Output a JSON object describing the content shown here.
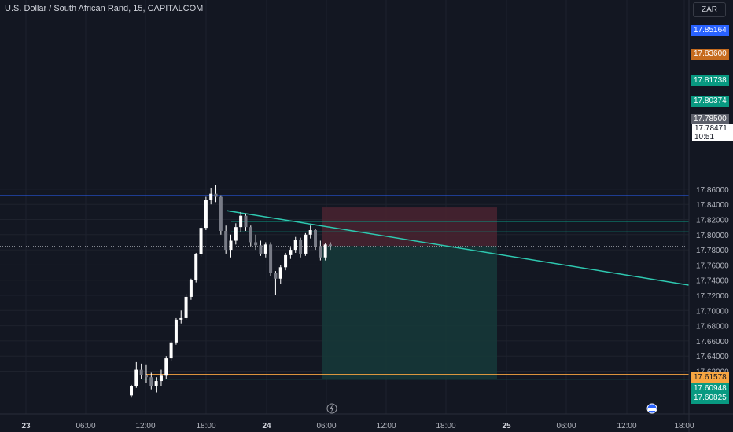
{
  "header": {
    "title": "U.S. Dollar / South African Rand, 15, CAPITALCOM",
    "currency": "ZAR"
  },
  "colors": {
    "background": "#131722",
    "axis_text": "#b2b5be",
    "candle": "#ffffff",
    "trendline": "#2ec8b0",
    "blue_line": "#2962ff",
    "teal_line": "#089981",
    "orange_line": "#f7a541",
    "stop_zone": "#4a2330",
    "target_zone": "#163a3a"
  },
  "chart_data": {
    "type": "candlestick",
    "symbol": "USDZAR",
    "timeframe": "15",
    "y_range": [
      17.585,
      17.88
    ],
    "y_ticks": [
      "17.86000",
      "17.84000",
      "17.82000",
      "17.80000",
      "17.78000",
      "17.76000",
      "17.74000",
      "17.72000",
      "17.70000",
      "17.68000",
      "17.66000",
      "17.64000",
      "17.62000"
    ],
    "x_labels": [
      "23",
      "06:00",
      "12:00",
      "18:00",
      "24",
      "06:00",
      "12:00",
      "18:00",
      "25",
      "06:00",
      "12:00",
      "18:00"
    ],
    "last_price": {
      "value": 17.7847,
      "label": "17.78471",
      "countdown": "10:51"
    },
    "price_lines": [
      {
        "label": "17.85164",
        "value": 17.85164,
        "kind": "blue"
      },
      {
        "label": "17.83600",
        "value": 17.836,
        "kind": "orange_tag"
      },
      {
        "label": "17.81738",
        "value": 17.81738,
        "kind": "teal"
      },
      {
        "label": "17.80374",
        "value": 17.80374,
        "kind": "teal"
      },
      {
        "label": "17.78500",
        "value": 17.785,
        "kind": "gray_tag"
      },
      {
        "label": "17.61578",
        "value": 17.61578,
        "kind": "orange"
      },
      {
        "label": "17.60948",
        "value": 17.60948,
        "kind": "teal"
      },
      {
        "label": "17.60825",
        "value": 17.60825,
        "kind": "teal_tag"
      }
    ],
    "position": {
      "type": "short",
      "entry": 17.785,
      "stop": 17.836,
      "target": 17.60948
    },
    "trendline": {
      "from": 17.8318,
      "to": 17.7331
    },
    "candles": [
      [
        17.588,
        17.602,
        17.585,
        17.6
      ],
      [
        17.6,
        17.632,
        17.598,
        17.622
      ],
      [
        17.622,
        17.63,
        17.61,
        17.615
      ],
      [
        17.615,
        17.628,
        17.605,
        17.612
      ],
      [
        17.612,
        17.618,
        17.596,
        17.6
      ],
      [
        17.6,
        17.612,
        17.592,
        17.607
      ],
      [
        17.607,
        17.622,
        17.6,
        17.614
      ],
      [
        17.614,
        17.64,
        17.61,
        17.637
      ],
      [
        17.637,
        17.66,
        17.633,
        17.657
      ],
      [
        17.657,
        17.69,
        17.655,
        17.688
      ],
      [
        17.688,
        17.7,
        17.683,
        17.69
      ],
      [
        17.69,
        17.722,
        17.688,
        17.718
      ],
      [
        17.718,
        17.742,
        17.714,
        17.74
      ],
      [
        17.74,
        17.776,
        17.737,
        17.774
      ],
      [
        17.774,
        17.812,
        17.771,
        17.809
      ],
      [
        17.809,
        17.85,
        17.806,
        17.846
      ],
      [
        17.846,
        17.862,
        17.84,
        17.854
      ],
      [
        17.854,
        17.866,
        17.843,
        17.85
      ],
      [
        17.85,
        17.852,
        17.8,
        17.805
      ],
      [
        17.805,
        17.812,
        17.775,
        17.78
      ],
      [
        17.78,
        17.8,
        17.77,
        17.792
      ],
      [
        17.792,
        17.815,
        17.787,
        17.81
      ],
      [
        17.81,
        17.83,
        17.803,
        17.825
      ],
      [
        17.825,
        17.828,
        17.805,
        17.81
      ],
      [
        17.81,
        17.812,
        17.785,
        17.79
      ],
      [
        17.79,
        17.8,
        17.78,
        17.786
      ],
      [
        17.786,
        17.792,
        17.772,
        17.775
      ],
      [
        17.775,
        17.79,
        17.77,
        17.787
      ],
      [
        17.787,
        17.79,
        17.745,
        17.75
      ],
      [
        17.75,
        17.752,
        17.72,
        17.742
      ],
      [
        17.742,
        17.76,
        17.735,
        17.757
      ],
      [
        17.757,
        17.776,
        17.753,
        17.773
      ],
      [
        17.773,
        17.783,
        17.768,
        17.78
      ],
      [
        17.78,
        17.797,
        17.776,
        17.793
      ],
      [
        17.793,
        17.796,
        17.77,
        17.775
      ],
      [
        17.775,
        17.802,
        17.772,
        17.8
      ],
      [
        17.8,
        17.812,
        17.795,
        17.806
      ],
      [
        17.806,
        17.808,
        17.78,
        17.785
      ],
      [
        17.785,
        17.792,
        17.766,
        17.77
      ],
      [
        17.77,
        17.789,
        17.766,
        17.787
      ],
      [
        17.787,
        17.79,
        17.78,
        17.785
      ]
    ]
  }
}
